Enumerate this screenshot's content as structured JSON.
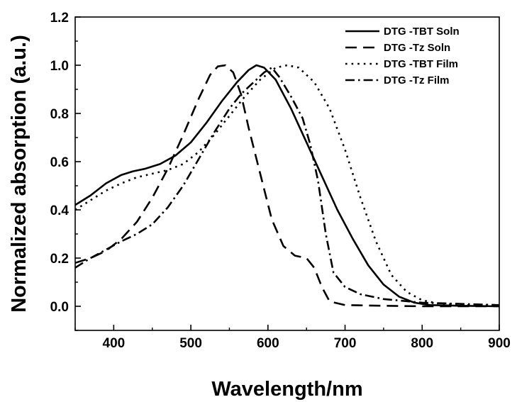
{
  "chart_data": {
    "type": "line",
    "xlabel": "Wavelength/nm",
    "ylabel": "Normalized absorption (a.u.)",
    "xlim": [
      350,
      900
    ],
    "ylim": [
      -0.1,
      1.2
    ],
    "xticks": [
      400,
      500,
      600,
      700,
      800,
      900
    ],
    "yticks": [
      0.0,
      0.2,
      0.4,
      0.6,
      0.8,
      1.0,
      1.2
    ],
    "grid": false,
    "legend_position": "top-right",
    "series": [
      {
        "name": "DTG -TBT Soln",
        "dash": "solid",
        "x": [
          350,
          370,
          390,
          410,
          425,
          440,
          460,
          480,
          500,
          520,
          540,
          560,
          575,
          585,
          595,
          610,
          630,
          650,
          670,
          690,
          710,
          730,
          750,
          770,
          790,
          810,
          850,
          900
        ],
        "y": [
          0.42,
          0.46,
          0.51,
          0.545,
          0.56,
          0.57,
          0.59,
          0.625,
          0.68,
          0.76,
          0.85,
          0.93,
          0.98,
          1.0,
          0.99,
          0.94,
          0.82,
          0.68,
          0.54,
          0.4,
          0.28,
          0.17,
          0.09,
          0.04,
          0.015,
          0.005,
          0.002,
          0.0
        ]
      },
      {
        "name": "DTG -Tz Soln",
        "dash": "dashed",
        "x": [
          350,
          370,
          390,
          410,
          430,
          450,
          470,
          490,
          510,
          525,
          535,
          545,
          555,
          565,
          575,
          590,
          605,
          620,
          635,
          650,
          660,
          670,
          680,
          700,
          750,
          800,
          900
        ],
        "y": [
          0.18,
          0.2,
          0.23,
          0.28,
          0.35,
          0.45,
          0.57,
          0.71,
          0.86,
          0.96,
          0.995,
          1.0,
          0.97,
          0.88,
          0.74,
          0.55,
          0.36,
          0.25,
          0.21,
          0.2,
          0.16,
          0.08,
          0.02,
          0.005,
          0.002,
          0.0,
          0.0
        ]
      },
      {
        "name": "DTG -TBT Film",
        "dash": "dotted",
        "x": [
          350,
          370,
          390,
          410,
          430,
          450,
          470,
          490,
          510,
          530,
          550,
          570,
          590,
          610,
          625,
          640,
          660,
          680,
          700,
          720,
          740,
          760,
          780,
          800,
          820,
          850,
          900
        ],
        "y": [
          0.4,
          0.44,
          0.48,
          0.51,
          0.535,
          0.55,
          0.565,
          0.59,
          0.64,
          0.71,
          0.79,
          0.87,
          0.94,
          0.99,
          1.0,
          0.99,
          0.93,
          0.82,
          0.65,
          0.45,
          0.27,
          0.13,
          0.06,
          0.025,
          0.012,
          0.006,
          0.003
        ]
      },
      {
        "name": "DTG -Tz Film",
        "dash": "dash-dot",
        "x": [
          350,
          370,
          390,
          410,
          430,
          450,
          470,
          490,
          510,
          530,
          550,
          565,
          575,
          585,
          595,
          605,
          615,
          630,
          645,
          655,
          665,
          675,
          685,
          700,
          720,
          750,
          800,
          900
        ],
        "y": [
          0.16,
          0.2,
          0.235,
          0.27,
          0.3,
          0.34,
          0.41,
          0.5,
          0.61,
          0.72,
          0.82,
          0.88,
          0.91,
          0.94,
          0.97,
          0.99,
          0.95,
          0.87,
          0.78,
          0.67,
          0.52,
          0.3,
          0.14,
          0.08,
          0.05,
          0.03,
          0.015,
          0.005
        ]
      }
    ]
  }
}
